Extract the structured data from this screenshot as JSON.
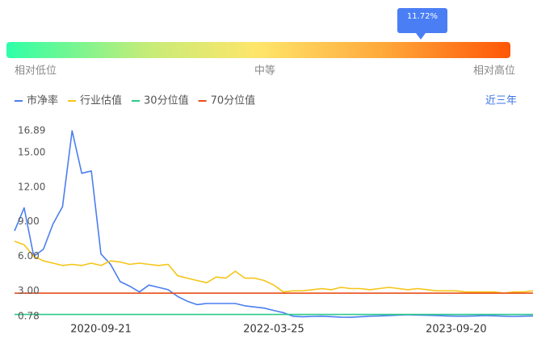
{
  "gauge": {
    "marker_label": "11.72%",
    "low_label": "相对低位",
    "mid_label": "中等",
    "high_label": "相对高位"
  },
  "range_button": "近三年",
  "chart_data": {
    "type": "line",
    "categories": [
      null,
      null,
      null,
      null,
      null,
      null,
      null,
      null,
      null,
      "2020-09-21",
      null,
      null,
      null,
      null,
      null,
      null,
      null,
      null,
      null,
      null,
      null,
      null,
      null,
      null,
      null,
      null,
      null,
      "2022-03-25",
      null,
      null,
      null,
      null,
      null,
      null,
      null,
      null,
      null,
      null,
      null,
      null,
      null,
      null,
      null,
      null,
      null,
      null,
      "2023-09-20",
      null,
      null,
      null,
      null,
      null,
      null,
      null,
      null
    ],
    "series": [
      {
        "name": "市净率",
        "color": "#4a7ef0",
        "values": [
          8.2,
          10.2,
          6.0,
          6.6,
          8.8,
          10.3,
          16.89,
          13.2,
          13.4,
          6.2,
          5.3,
          3.8,
          3.4,
          2.9,
          3.5,
          3.3,
          3.1,
          2.5,
          2.1,
          1.8,
          1.9,
          1.9,
          1.9,
          1.9,
          1.7,
          1.6,
          1.5,
          1.3,
          1.1,
          0.8,
          0.75,
          0.78,
          0.8,
          0.76,
          0.72,
          0.7,
          0.75,
          0.8,
          0.82,
          0.85,
          0.9,
          0.92,
          0.9,
          0.88,
          0.85,
          0.82,
          0.8,
          0.8,
          0.82,
          0.85,
          0.83,
          0.8,
          0.78,
          0.8,
          0.82
        ]
      },
      {
        "name": "行业估值",
        "color": "#f5c518",
        "values": [
          7.3,
          7.0,
          6.0,
          5.6,
          5.4,
          5.2,
          5.3,
          5.2,
          5.4,
          5.2,
          5.6,
          5.5,
          5.3,
          5.4,
          5.3,
          5.2,
          5.3,
          4.3,
          4.1,
          3.9,
          3.7,
          4.2,
          4.1,
          4.7,
          4.1,
          4.1,
          3.9,
          3.5,
          2.9,
          3.0,
          3.0,
          3.1,
          3.2,
          3.1,
          3.3,
          3.2,
          3.2,
          3.1,
          3.2,
          3.3,
          3.2,
          3.1,
          3.2,
          3.1,
          3.0,
          3.0,
          3.0,
          2.9,
          2.9,
          2.9,
          2.9,
          2.8,
          2.9,
          2.9,
          3.0
        ]
      },
      {
        "name": "30分位值",
        "color": "#2ec98a",
        "values": [
          0.95,
          0.95,
          0.95,
          0.95,
          0.95,
          0.95,
          0.95,
          0.95,
          0.95,
          0.95,
          0.95,
          0.95,
          0.95,
          0.95,
          0.95,
          0.95,
          0.95,
          0.95,
          0.95,
          0.95,
          0.95,
          0.95,
          0.95,
          0.95,
          0.95,
          0.95,
          0.95,
          0.95,
          0.95,
          0.95,
          0.95,
          0.95,
          0.95,
          0.95,
          0.95,
          0.95,
          0.95,
          0.95,
          0.95,
          0.95,
          0.95,
          0.95,
          0.95,
          0.95,
          0.95,
          0.95,
          0.95,
          0.95,
          0.95,
          0.95,
          0.95,
          0.95,
          0.95,
          0.95,
          0.95
        ]
      },
      {
        "name": "70分位值",
        "color": "#e8501c",
        "values": [
          2.8,
          2.8,
          2.8,
          2.8,
          2.8,
          2.8,
          2.8,
          2.8,
          2.8,
          2.8,
          2.8,
          2.8,
          2.8,
          2.8,
          2.8,
          2.8,
          2.8,
          2.8,
          2.8,
          2.8,
          2.8,
          2.8,
          2.8,
          2.8,
          2.8,
          2.8,
          2.8,
          2.8,
          2.8,
          2.8,
          2.8,
          2.8,
          2.8,
          2.8,
          2.8,
          2.8,
          2.8,
          2.8,
          2.8,
          2.8,
          2.8,
          2.8,
          2.8,
          2.8,
          2.8,
          2.8,
          2.8,
          2.8,
          2.8,
          2.8,
          2.8,
          2.8,
          2.8,
          2.8,
          2.8
        ]
      }
    ],
    "ylim": [
      0.78,
      16.89
    ],
    "yticks": [
      0.78,
      {
        "value": 3,
        "label": "3.00"
      },
      {
        "value": 6,
        "label": "6.00"
      },
      {
        "value": 9,
        "label": "9.00"
      },
      {
        "value": 12,
        "label": "12.00"
      },
      {
        "value": 15,
        "label": "15.00"
      },
      16.89
    ],
    "grid": false
  }
}
